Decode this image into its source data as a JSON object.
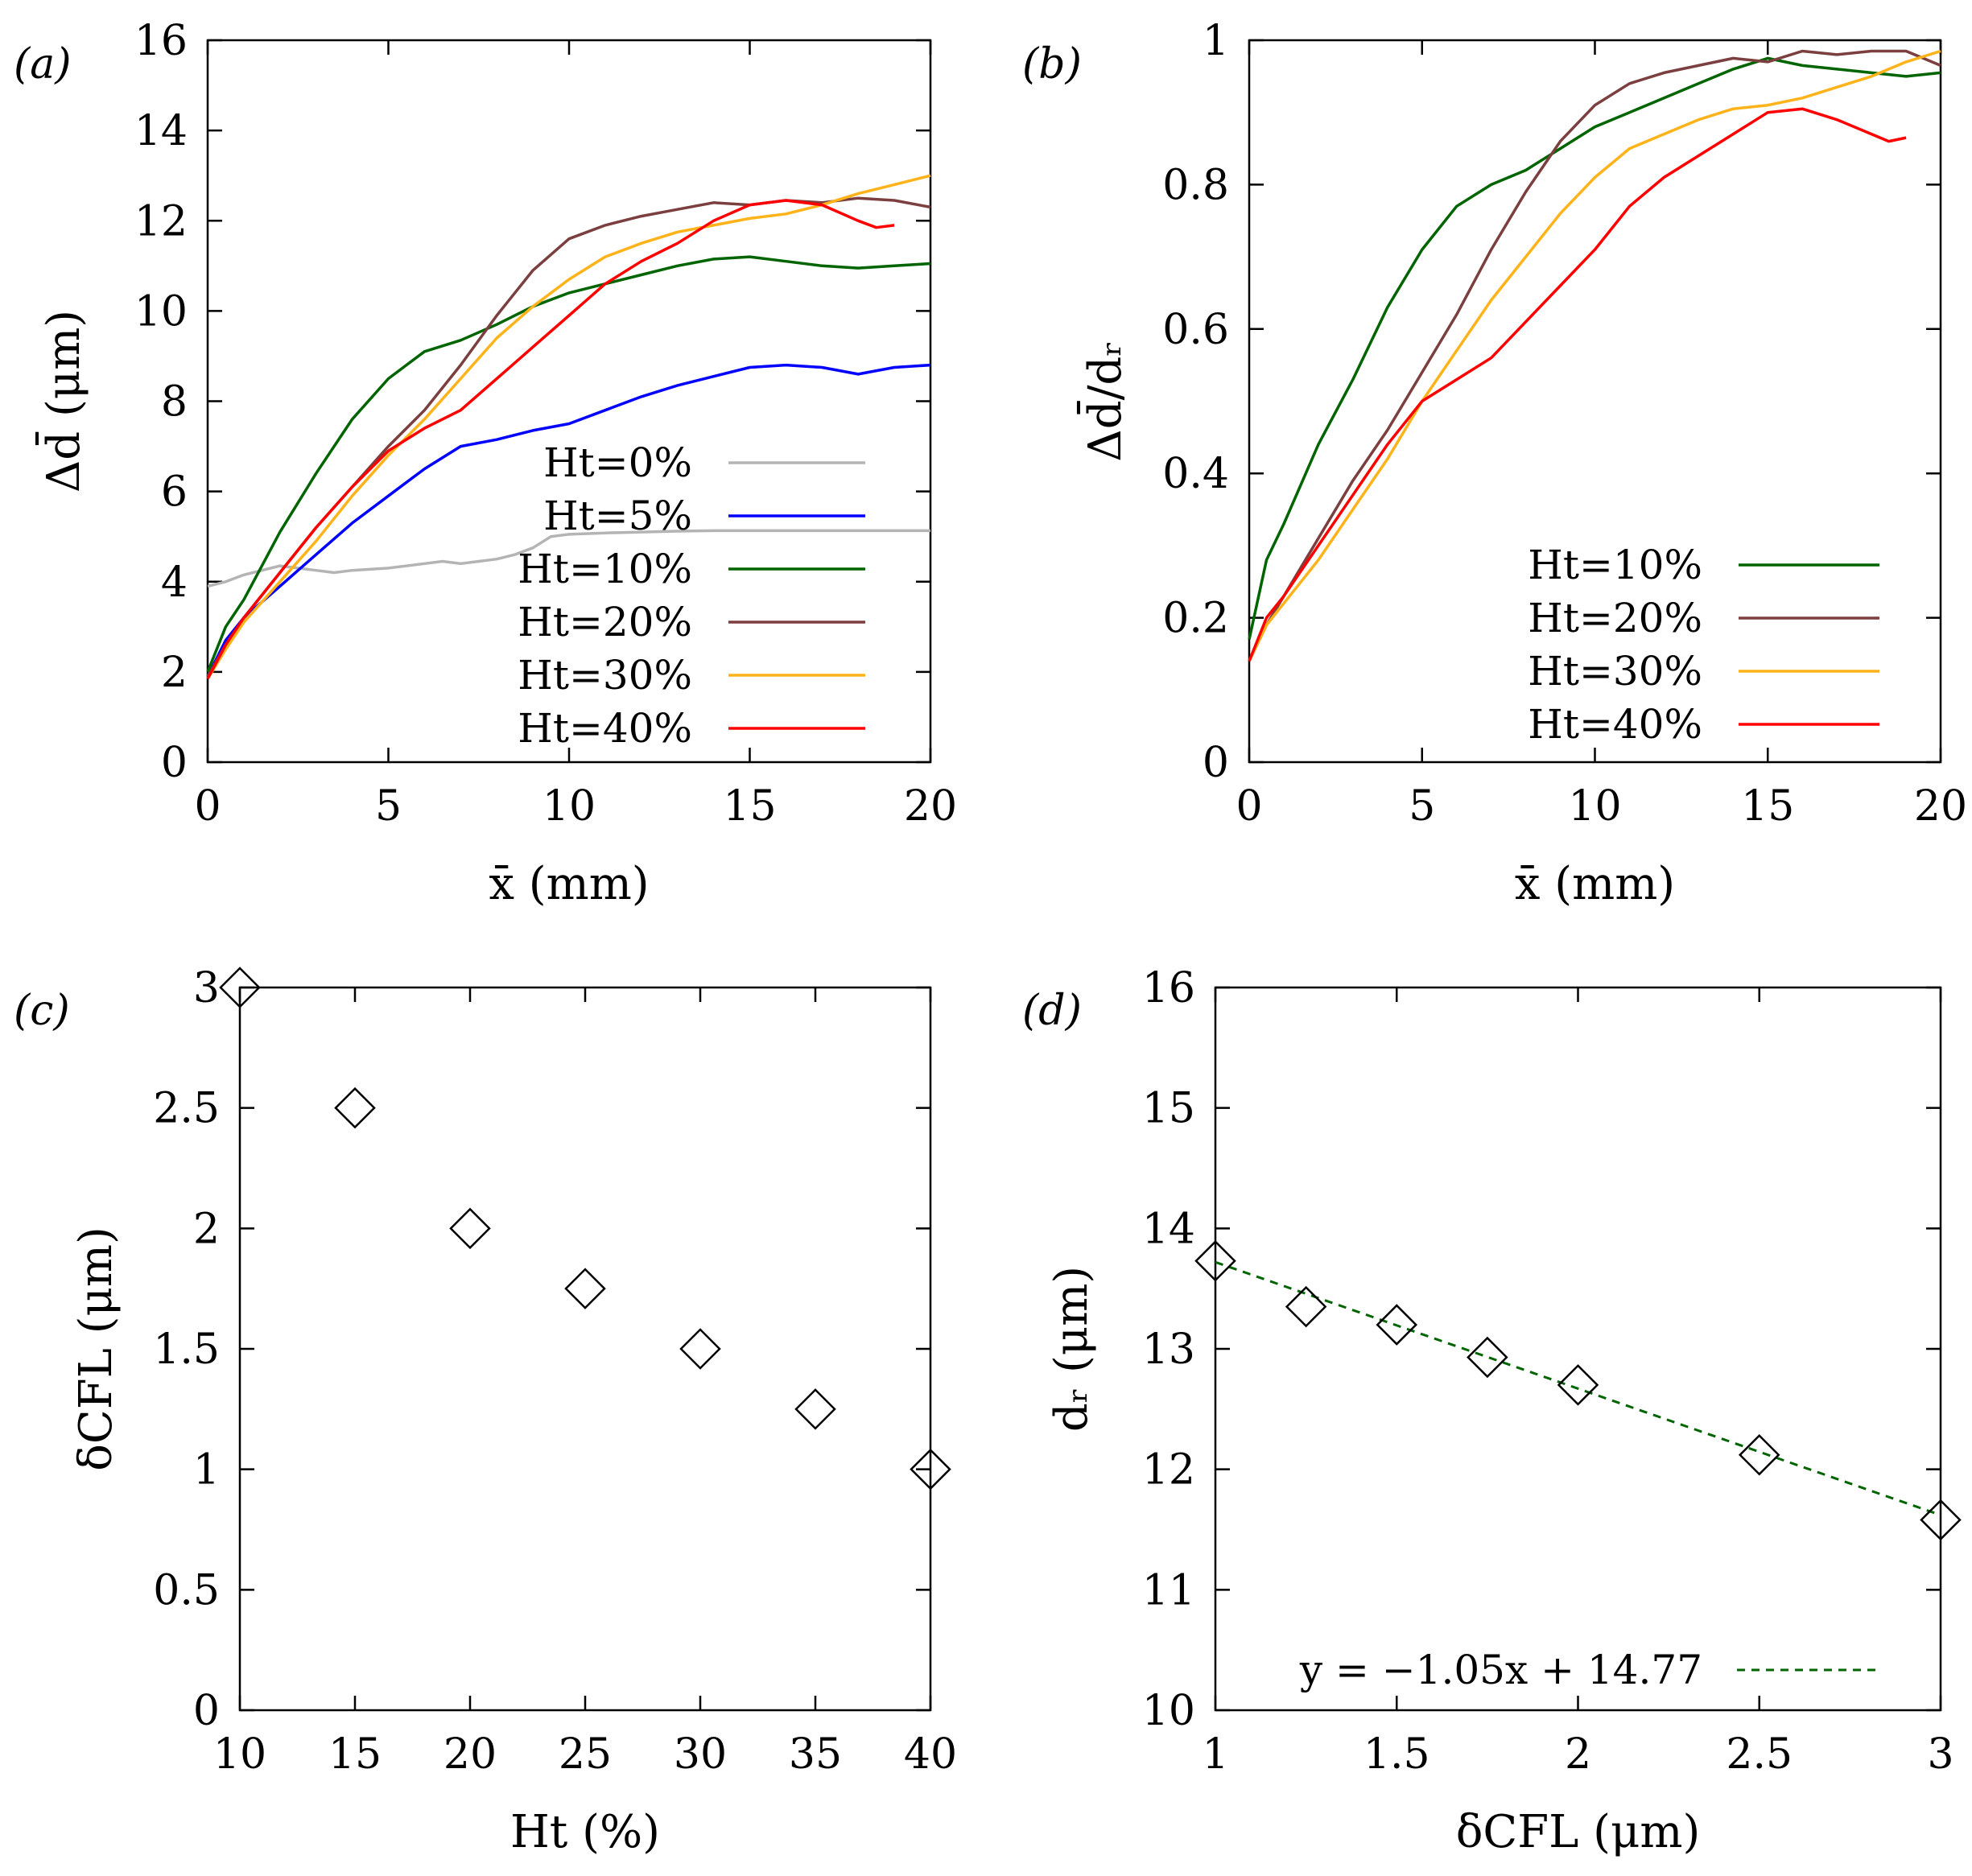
{
  "chart_data": [
    {
      "id": "a",
      "type": "line",
      "panel_label": "(a)",
      "xlabel": "x̄ (mm)",
      "ylabel": "Δd̄ (μm)",
      "xlim": [
        0,
        20
      ],
      "ylim": [
        0,
        16
      ],
      "xticks": [
        0,
        5,
        10,
        15,
        20
      ],
      "yticks": [
        0,
        2,
        4,
        6,
        8,
        10,
        12,
        14,
        16
      ],
      "legend_position": "bottom-right",
      "series": [
        {
          "name": "Ht=0%",
          "color": "#b4b4b4",
          "x": [
            0,
            0.5,
            1,
            1.5,
            2,
            2.5,
            3,
            3.5,
            4,
            5,
            6,
            6.5,
            7,
            7.5,
            8,
            8.5,
            9,
            9.5,
            10,
            11,
            12,
            13,
            14,
            15,
            16,
            17,
            18,
            19,
            20
          ],
          "y": [
            3.9,
            4.0,
            4.15,
            4.25,
            4.35,
            4.3,
            4.25,
            4.2,
            4.25,
            4.3,
            4.4,
            4.45,
            4.4,
            4.45,
            4.5,
            4.6,
            4.75,
            5.0,
            5.05,
            5.08,
            5.1,
            5.12,
            5.13,
            5.13,
            5.13,
            5.13,
            5.13,
            5.13,
            5.13
          ]
        },
        {
          "name": "Ht=5%",
          "color": "#0000ff",
          "x": [
            0,
            0.5,
            1,
            2,
            3,
            4,
            5,
            6,
            7,
            8,
            9,
            10,
            11,
            12,
            13,
            14,
            15,
            16,
            17,
            18,
            19,
            20
          ],
          "y": [
            1.9,
            2.7,
            3.2,
            3.9,
            4.6,
            5.3,
            5.9,
            6.5,
            7.0,
            7.15,
            7.35,
            7.5,
            7.8,
            8.1,
            8.35,
            8.55,
            8.75,
            8.8,
            8.75,
            8.6,
            8.75,
            8.8
          ]
        },
        {
          "name": "Ht=10%",
          "color": "#006400",
          "x": [
            0,
            0.5,
            1,
            2,
            3,
            4,
            5,
            6,
            7,
            8,
            9,
            10,
            11,
            12,
            13,
            14,
            15,
            16,
            17,
            18,
            19,
            20
          ],
          "y": [
            2.0,
            3.0,
            3.6,
            5.1,
            6.4,
            7.6,
            8.5,
            9.1,
            9.35,
            9.7,
            10.1,
            10.4,
            10.6,
            10.8,
            11.0,
            11.15,
            11.2,
            11.1,
            11.0,
            10.95,
            11.0,
            11.05
          ]
        },
        {
          "name": "Ht=20%",
          "color": "#7b3f3f",
          "x": [
            0,
            0.5,
            1,
            2,
            3,
            4,
            5,
            6,
            7,
            8,
            9,
            10,
            11,
            12,
            13,
            14,
            15,
            16,
            17,
            18,
            19,
            20
          ],
          "y": [
            1.9,
            2.6,
            3.2,
            4.2,
            5.2,
            6.1,
            7.0,
            7.8,
            8.8,
            9.9,
            10.9,
            11.6,
            11.9,
            12.1,
            12.25,
            12.4,
            12.35,
            12.45,
            12.4,
            12.5,
            12.45,
            12.3
          ]
        },
        {
          "name": "Ht=30%",
          "color": "#ffb31a",
          "x": [
            0,
            0.5,
            1,
            2,
            3,
            4,
            5,
            6,
            7,
            8,
            9,
            10,
            11,
            12,
            13,
            14,
            15,
            16,
            17,
            18,
            19,
            20
          ],
          "y": [
            1.85,
            2.5,
            3.1,
            4.0,
            4.9,
            5.9,
            6.8,
            7.6,
            8.5,
            9.4,
            10.1,
            10.7,
            11.2,
            11.5,
            11.75,
            11.9,
            12.05,
            12.15,
            12.35,
            12.6,
            12.8,
            13.0
          ]
        },
        {
          "name": "Ht=40%",
          "color": "#ff0000",
          "x": [
            0,
            0.5,
            1,
            2,
            3,
            4,
            5,
            6,
            7,
            8,
            9,
            10,
            11,
            12,
            13,
            14,
            15,
            16,
            17,
            18,
            18.5,
            19
          ],
          "y": [
            1.85,
            2.6,
            3.2,
            4.2,
            5.2,
            6.1,
            6.9,
            7.4,
            7.8,
            8.5,
            9.2,
            9.9,
            10.6,
            11.1,
            11.5,
            12.0,
            12.35,
            12.45,
            12.35,
            12.0,
            11.85,
            11.9
          ]
        }
      ]
    },
    {
      "id": "b",
      "type": "line",
      "panel_label": "(b)",
      "xlabel": "x̄ (mm)",
      "ylabel": "Δd̄/dᵣ",
      "xlim": [
        0,
        20
      ],
      "ylim": [
        0,
        1
      ],
      "xticks": [
        0,
        5,
        10,
        15,
        20
      ],
      "yticks": [
        0,
        0.2,
        0.4,
        0.6,
        0.8,
        1
      ],
      "legend_position": "bottom-right",
      "series": [
        {
          "name": "Ht=10%",
          "color": "#006400",
          "x": [
            0,
            0.5,
            1,
            2,
            3,
            4,
            5,
            6,
            7,
            8,
            9,
            10,
            11,
            12,
            13,
            14,
            15,
            16,
            17,
            18,
            19,
            20
          ],
          "y": [
            0.17,
            0.28,
            0.33,
            0.44,
            0.53,
            0.63,
            0.71,
            0.77,
            0.8,
            0.82,
            0.85,
            0.88,
            0.9,
            0.92,
            0.94,
            0.96,
            0.975,
            0.965,
            0.96,
            0.955,
            0.95,
            0.955
          ]
        },
        {
          "name": "Ht=20%",
          "color": "#7b3f3f",
          "x": [
            0,
            0.5,
            1,
            2,
            3,
            4,
            5,
            6,
            7,
            8,
            9,
            10,
            11,
            12,
            13,
            14,
            15,
            16,
            17,
            18,
            19,
            19.5,
            20
          ],
          "y": [
            0.14,
            0.19,
            0.23,
            0.31,
            0.39,
            0.46,
            0.54,
            0.62,
            0.71,
            0.79,
            0.86,
            0.91,
            0.94,
            0.955,
            0.965,
            0.975,
            0.97,
            0.985,
            0.98,
            0.985,
            0.985,
            0.975,
            0.965
          ]
        },
        {
          "name": "Ht=30%",
          "color": "#ffb31a",
          "x": [
            0,
            0.5,
            1,
            2,
            3,
            4,
            5,
            6,
            7,
            8,
            9,
            10,
            11,
            12,
            13,
            14,
            15,
            16,
            17,
            18,
            19,
            20
          ],
          "y": [
            0.14,
            0.19,
            0.22,
            0.28,
            0.35,
            0.42,
            0.5,
            0.57,
            0.64,
            0.7,
            0.76,
            0.81,
            0.85,
            0.87,
            0.89,
            0.905,
            0.91,
            0.92,
            0.935,
            0.95,
            0.97,
            0.985
          ]
        },
        {
          "name": "Ht=40%",
          "color": "#ff0000",
          "x": [
            0,
            0.5,
            1,
            2,
            3,
            4,
            5,
            6,
            7,
            8,
            9,
            10,
            11,
            12,
            13,
            14,
            15,
            16,
            17,
            18,
            18.5,
            19
          ],
          "y": [
            0.14,
            0.2,
            0.23,
            0.3,
            0.37,
            0.44,
            0.5,
            0.53,
            0.56,
            0.61,
            0.66,
            0.71,
            0.77,
            0.81,
            0.84,
            0.87,
            0.9,
            0.905,
            0.89,
            0.87,
            0.86,
            0.865
          ]
        }
      ]
    },
    {
      "id": "c",
      "type": "scatter",
      "panel_label": "(c)",
      "xlabel": "Ht (%)",
      "ylabel": "δCFL (μm)",
      "xlim": [
        10,
        40
      ],
      "ylim": [
        0,
        3
      ],
      "xticks": [
        10,
        15,
        20,
        25,
        30,
        35,
        40
      ],
      "yticks": [
        0,
        0.5,
        1,
        1.5,
        2,
        2.5,
        3
      ],
      "series": [
        {
          "name": "δCFL",
          "marker": "diamond",
          "x": [
            10,
            15,
            20,
            25,
            30,
            35,
            40
          ],
          "y": [
            3.0,
            2.5,
            2.0,
            1.75,
            1.5,
            1.25,
            1.0
          ]
        }
      ]
    },
    {
      "id": "d",
      "type": "scatter",
      "panel_label": "(d)",
      "xlabel": "δCFL (μm)",
      "ylabel": "dᵣ (μm)",
      "xlim": [
        1,
        3
      ],
      "ylim": [
        10,
        16
      ],
      "xticks": [
        1,
        1.5,
        2,
        2.5,
        3
      ],
      "yticks": [
        10,
        11,
        12,
        13,
        14,
        15,
        16
      ],
      "legend_position": "bottom-right",
      "series": [
        {
          "name": "dᵣ",
          "marker": "diamond",
          "x": [
            1.0,
            1.25,
            1.5,
            1.75,
            2.0,
            2.5,
            3.0
          ],
          "y": [
            13.73,
            13.35,
            13.2,
            12.93,
            12.7,
            12.12,
            11.58
          ]
        }
      ],
      "fit": {
        "label": "y = −1.05x + 14.77",
        "slope": -1.05,
        "intercept": 14.77,
        "color": "#006400",
        "style": "dashed"
      }
    }
  ]
}
